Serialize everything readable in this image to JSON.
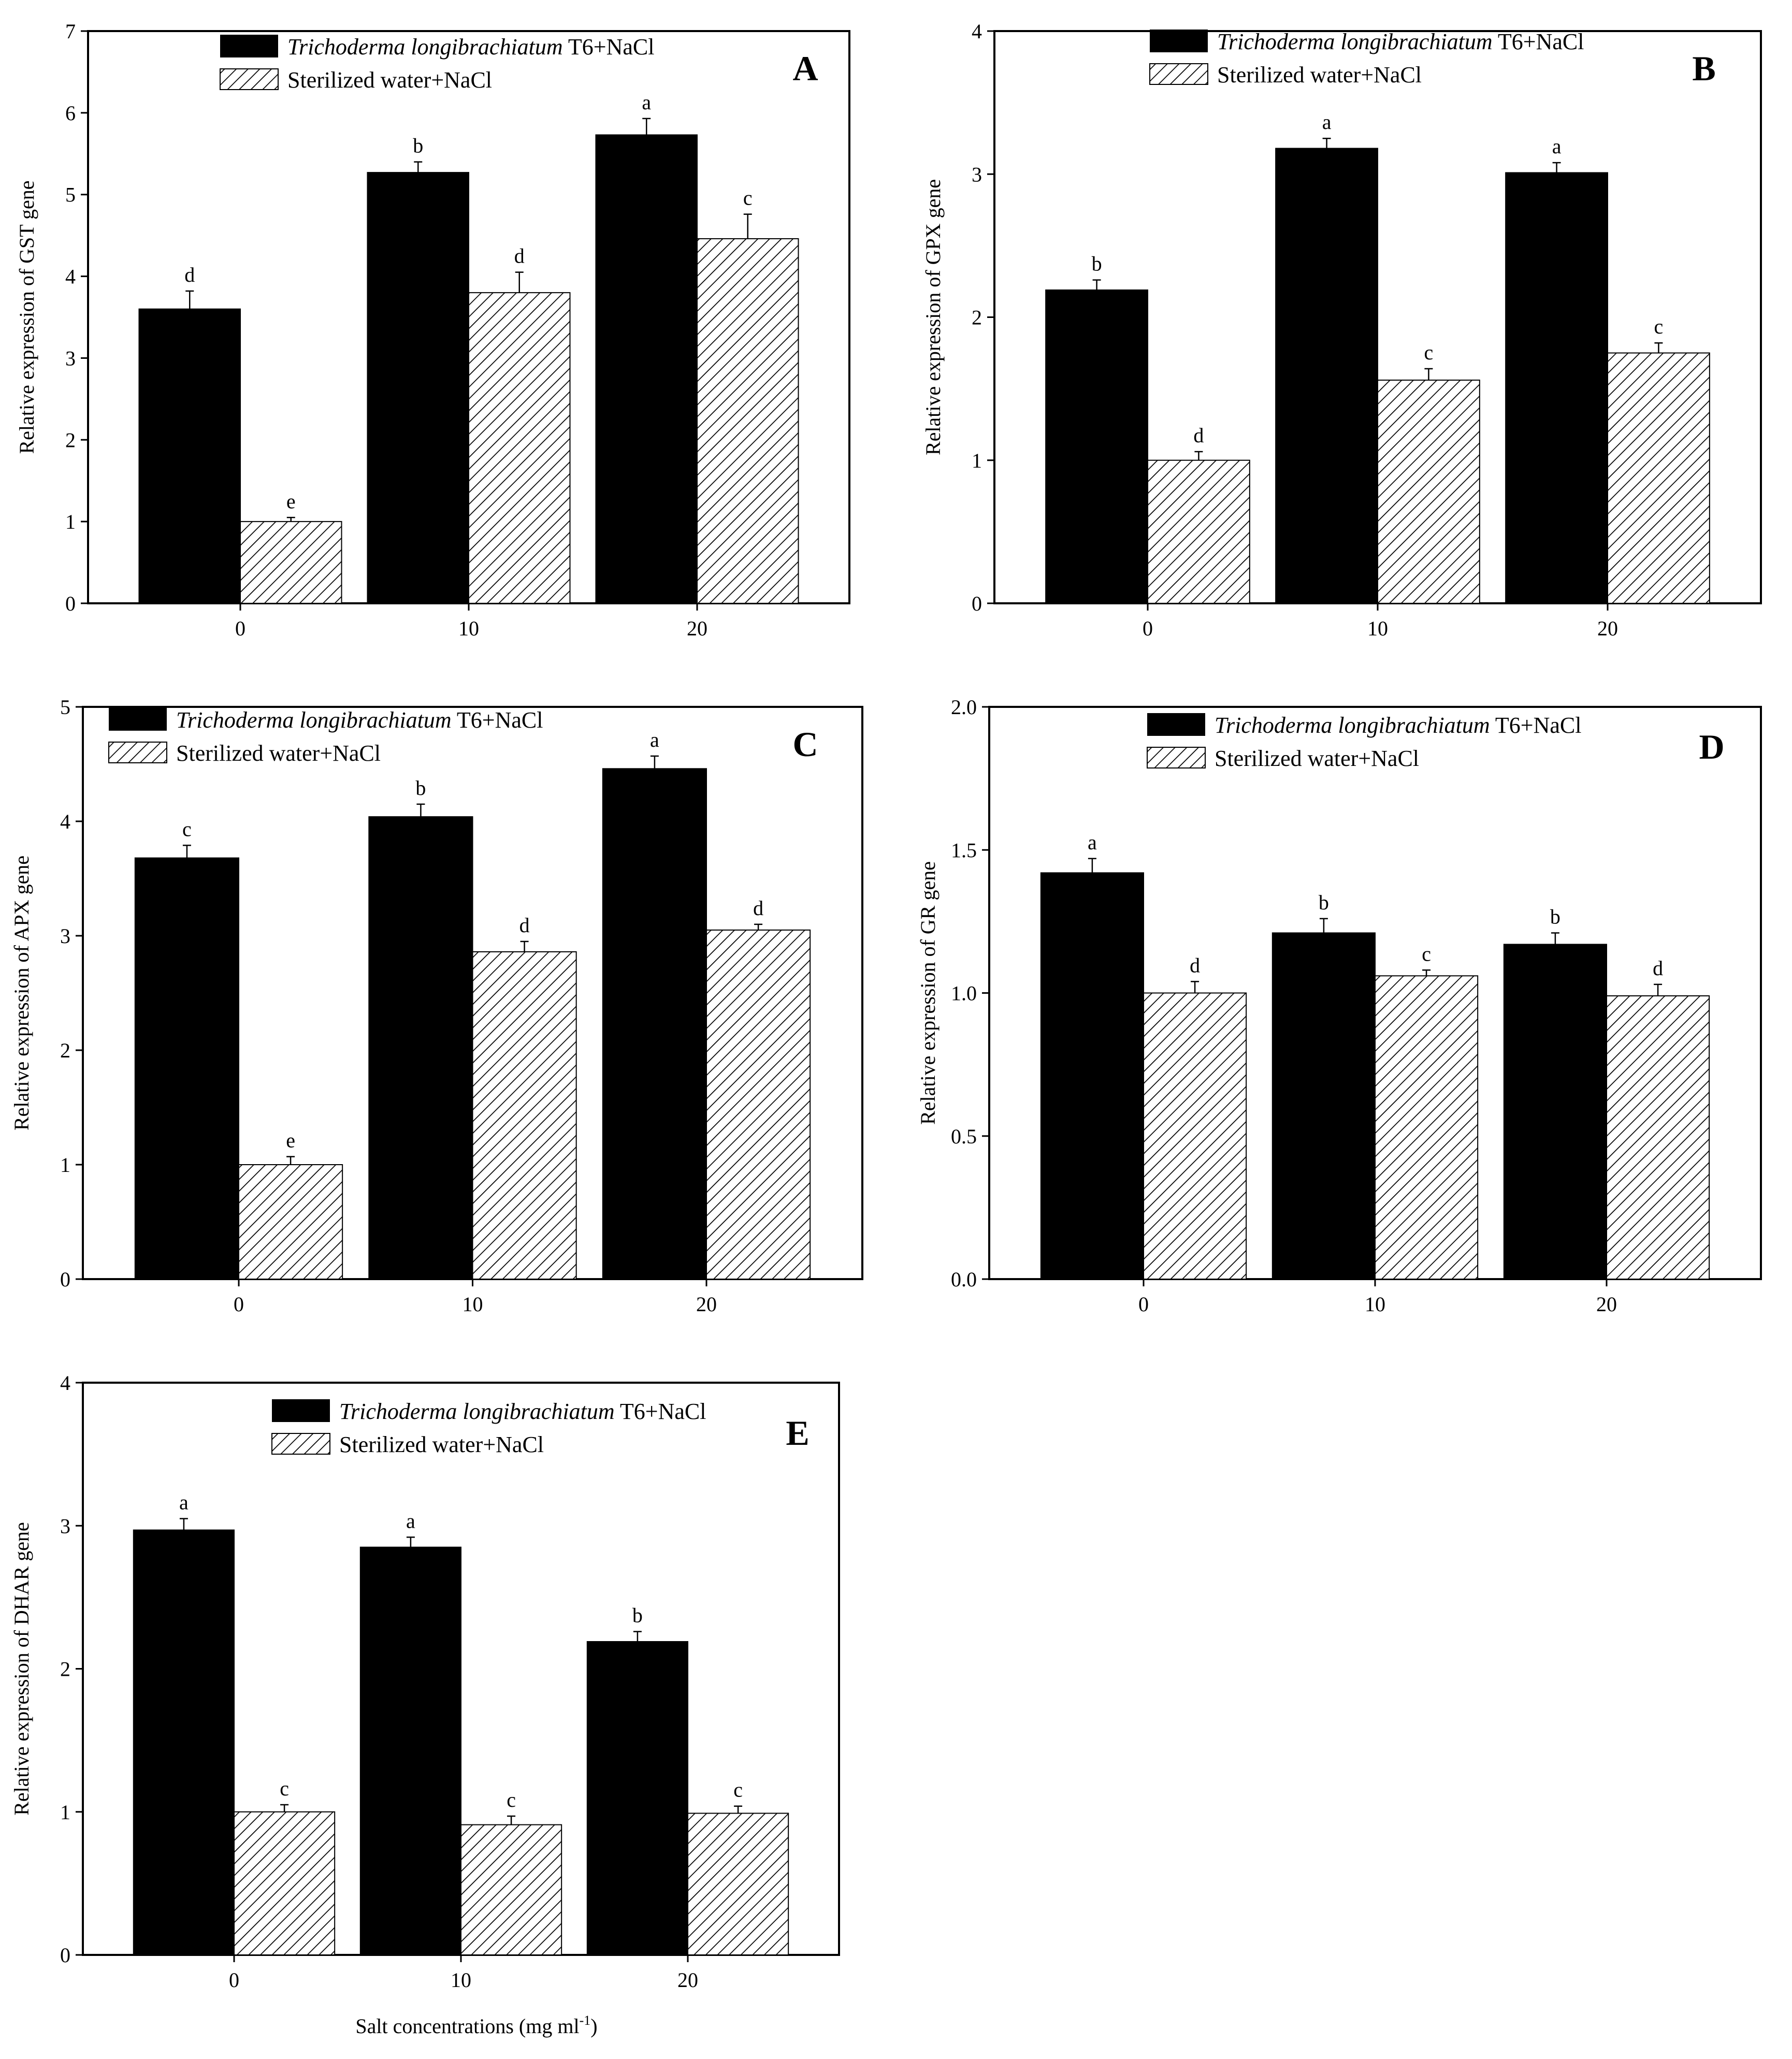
{
  "figure": {
    "xlabel_text": "Salt concentrations (mg ml",
    "xlabel_superscript": "-1",
    "xlabel_close": ")"
  },
  "legend": {
    "series1_italic": "Trichoderma longibrachiatum",
    "series1_rest": " T6+NaCl",
    "series2": "Sterilized water+NaCl"
  },
  "colors": {
    "series1_fill": "#000000",
    "series2_hatch": "#000000",
    "background": "#ffffff"
  },
  "chart_data": [
    {
      "panel": "A",
      "type": "bar",
      "ylabel": "Relative expression of GST gene",
      "xlabel": "",
      "categories": [
        "0",
        "10",
        "20"
      ],
      "ylim": [
        0,
        7
      ],
      "yticks": [
        "0",
        "1",
        "2",
        "3",
        "4",
        "5",
        "6",
        "7"
      ],
      "series": [
        {
          "name": "Trichoderma longibrachiatum T6+NaCl",
          "values": [
            3.6,
            5.27,
            5.73
          ],
          "errors": [
            0.22,
            0.13,
            0.2
          ],
          "letters": [
            "d",
            "b",
            "a"
          ]
        },
        {
          "name": "Sterilized water+NaCl",
          "values": [
            1.0,
            3.8,
            4.46
          ],
          "errors": [
            0.05,
            0.25,
            0.3
          ],
          "letters": [
            "e",
            "d",
            "c"
          ]
        }
      ]
    },
    {
      "panel": "B",
      "type": "bar",
      "ylabel": "Relative expression of GPX gene",
      "xlabel": "",
      "categories": [
        "0",
        "10",
        "20"
      ],
      "ylim": [
        0,
        4
      ],
      "yticks": [
        "0",
        "1",
        "2",
        "3",
        "4"
      ],
      "series": [
        {
          "name": "Trichoderma longibrachiatum T6+NaCl",
          "values": [
            2.19,
            3.18,
            3.01
          ],
          "errors": [
            0.07,
            0.07,
            0.07
          ],
          "letters": [
            "b",
            "a",
            "a"
          ]
        },
        {
          "name": "Sterilized water+NaCl",
          "values": [
            1.0,
            1.56,
            1.75
          ],
          "errors": [
            0.06,
            0.08,
            0.07
          ],
          "letters": [
            "d",
            "c",
            "c"
          ]
        }
      ]
    },
    {
      "panel": "C",
      "type": "bar",
      "ylabel": "Relative expression of APX gene",
      "xlabel": "",
      "categories": [
        "0",
        "10",
        "20"
      ],
      "ylim": [
        0,
        5
      ],
      "yticks": [
        "0",
        "1",
        "2",
        "3",
        "4",
        "5"
      ],
      "series": [
        {
          "name": "Trichoderma longibrachiatum T6+NaCl",
          "values": [
            3.68,
            4.04,
            4.46
          ],
          "errors": [
            0.11,
            0.11,
            0.11
          ],
          "letters": [
            "c",
            "b",
            "a"
          ]
        },
        {
          "name": "Sterilized water+NaCl",
          "values": [
            1.0,
            2.86,
            3.05
          ],
          "errors": [
            0.07,
            0.09,
            0.05
          ],
          "letters": [
            "e",
            "d",
            "d"
          ]
        }
      ]
    },
    {
      "panel": "D",
      "type": "bar",
      "ylabel": "Relative expression of GR gene",
      "xlabel": "",
      "categories": [
        "0",
        "10",
        "20"
      ],
      "ylim": [
        0,
        2.0
      ],
      "yticks": [
        "0.0",
        "0.5",
        "1.0",
        "1.5",
        "2.0"
      ],
      "series": [
        {
          "name": "Trichoderma longibrachiatum T6+NaCl",
          "values": [
            1.42,
            1.21,
            1.17
          ],
          "errors": [
            0.05,
            0.05,
            0.04
          ],
          "letters": [
            "a",
            "b",
            "b"
          ]
        },
        {
          "name": "Sterilized water+NaCl",
          "values": [
            1.0,
            1.06,
            0.99
          ],
          "errors": [
            0.04,
            0.02,
            0.04
          ],
          "letters": [
            "d",
            "c",
            "d"
          ]
        }
      ]
    },
    {
      "panel": "E",
      "type": "bar",
      "ylabel": "Relative expression of DHAR gene",
      "xlabel": "Salt concentrations (mg ml-1)",
      "categories": [
        "0",
        "10",
        "20"
      ],
      "ylim": [
        0,
        4
      ],
      "yticks": [
        "0",
        "1",
        "2",
        "3",
        "4"
      ],
      "series": [
        {
          "name": "Trichoderma longibrachiatum T6+NaCl",
          "values": [
            2.97,
            2.85,
            2.19
          ],
          "errors": [
            0.08,
            0.07,
            0.07
          ],
          "letters": [
            "a",
            "a",
            "b"
          ]
        },
        {
          "name": "Sterilized water+NaCl",
          "values": [
            1.0,
            0.91,
            0.99
          ],
          "errors": [
            0.05,
            0.06,
            0.05
          ],
          "letters": [
            "c",
            "c",
            "c"
          ]
        }
      ]
    }
  ]
}
